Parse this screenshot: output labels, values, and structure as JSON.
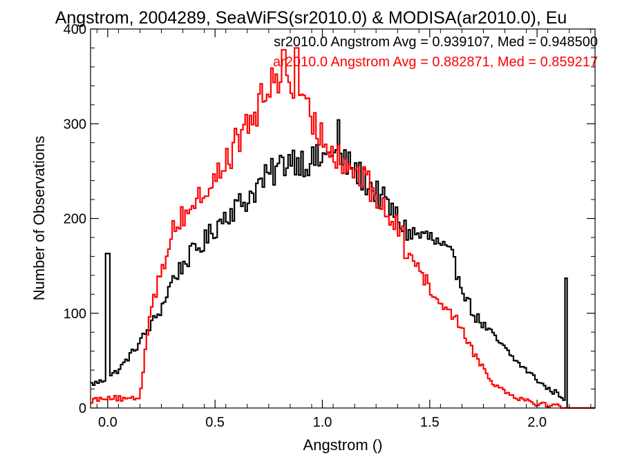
{
  "chart_data": {
    "type": "histogram",
    "title": "Angstrom, 2004289, SeaWiFS(sr2010.0) & MODISA(ar2010.0), Eu",
    "xlabel": "Angstrom ()",
    "ylabel": "Number of Observations",
    "xlim": [
      -0.08,
      2.27
    ],
    "ylim": [
      0,
      400
    ],
    "x_ticks": [
      0.0,
      0.5,
      1.0,
      1.5,
      2.0
    ],
    "x_tick_labels": [
      "0.0",
      "0.5",
      "1.0",
      "1.5",
      "2.0"
    ],
    "y_ticks": [
      0,
      100,
      200,
      300,
      400
    ],
    "y_tick_labels": [
      "0",
      "100",
      "200",
      "300",
      "400"
    ],
    "grid": false,
    "legend_placement": "top-right",
    "annotations": [
      {
        "text": "sr2010.0 Angstrom Avg = 0.939107, Med = 0.948500",
        "color": "#000000"
      },
      {
        "text": "ar2010.0 Angstrom Avg = 0.882871, Med = 0.859217",
        "color": "#ff0000"
      }
    ],
    "series": [
      {
        "color": "#000000",
        "anchors_x": [
          -0.08,
          -0.03,
          0.0,
          0.05,
          0.12,
          0.18,
          0.25,
          0.3,
          0.38,
          0.45,
          0.55,
          0.65,
          0.7,
          0.78,
          0.85,
          0.92,
          1.0,
          1.05,
          1.1,
          1.2,
          1.3,
          1.4,
          1.5,
          1.55,
          1.6,
          1.65,
          1.7,
          1.8,
          1.9,
          2.0,
          2.05,
          2.1,
          2.13,
          2.14,
          2.27
        ],
        "anchors_y": [
          25,
          28,
          32,
          40,
          60,
          80,
          105,
          135,
          160,
          175,
          205,
          220,
          235,
          250,
          265,
          260,
          262,
          268,
          260,
          240,
          215,
          185,
          180,
          170,
          160,
          130,
          100,
          75,
          50,
          30,
          20,
          15,
          10,
          0,
          0
        ],
        "spikes": [
          {
            "x": 0.0,
            "y": 163
          },
          {
            "x": 2.135,
            "y": 137
          },
          {
            "x": 1.075,
            "y": 304
          },
          {
            "x": 1.03,
            "y": 270
          }
        ]
      },
      {
        "color": "#ff0000",
        "anchors_x": [
          -0.08,
          0.0,
          0.05,
          0.1,
          0.15,
          0.16,
          0.2,
          0.25,
          0.3,
          0.4,
          0.5,
          0.6,
          0.7,
          0.78,
          0.82,
          0.85,
          0.88,
          0.95,
          1.0,
          1.05,
          1.1,
          1.2,
          1.3,
          1.4,
          1.45,
          1.5,
          1.6,
          1.65,
          1.7,
          1.8,
          1.9,
          2.0,
          2.1,
          2.15,
          2.27
        ],
        "anchors_y": [
          8,
          12,
          10,
          8,
          12,
          30,
          110,
          140,
          190,
          215,
          240,
          280,
          315,
          350,
          360,
          345,
          320,
          305,
          285,
          275,
          260,
          240,
          205,
          175,
          150,
          125,
          100,
          85,
          60,
          25,
          12,
          5,
          2,
          0,
          0
        ],
        "spikes": [
          {
            "x": 0.82,
            "y": 378
          },
          {
            "x": 0.88,
            "y": 380
          },
          {
            "x": 1.39,
            "y": 158
          },
          {
            "x": 1.59,
            "y": 104
          }
        ]
      }
    ]
  }
}
